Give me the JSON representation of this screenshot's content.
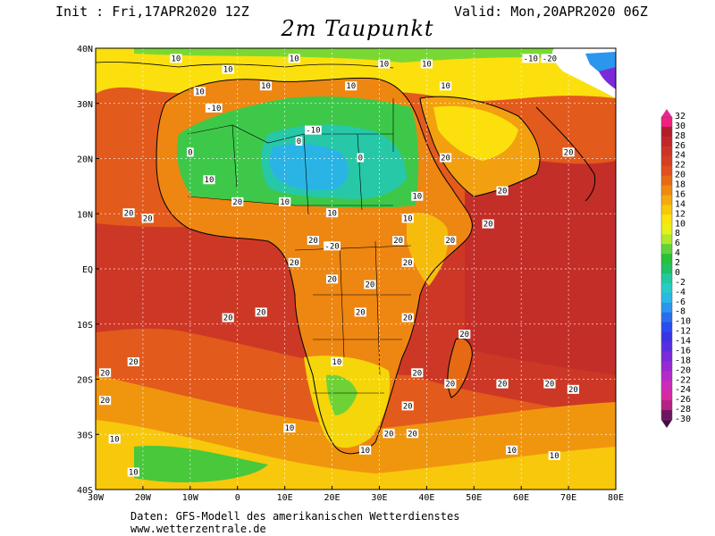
{
  "header": {
    "init": "Init : Fri,17APR2020 12Z",
    "valid": "Valid: Mon,20APR2020 06Z",
    "title": "2m Taupunkt"
  },
  "footer": {
    "line1": "Daten: GFS-Modell des amerikanischen Wetterdienstes",
    "line2": "www.wetterzentrale.de"
  },
  "map": {
    "region": "Africa",
    "lat_labels": [
      "40N",
      "30N",
      "20N",
      "10N",
      "EQ",
      "10S",
      "20S",
      "30S",
      "40S"
    ],
    "lon_labels": [
      "30W",
      "20W",
      "10W",
      "0",
      "10E",
      "20E",
      "30E",
      "40E",
      "50E",
      "60E",
      "70E",
      "80E"
    ],
    "lat_values": [
      40,
      30,
      20,
      10,
      0,
      -10,
      -20,
      -30,
      -40
    ],
    "lon_values": [
      -30,
      -20,
      -10,
      0,
      10,
      20,
      30,
      40,
      50,
      60,
      70,
      80
    ],
    "contour_labels": [
      {
        "text": "10",
        "lon": -13,
        "lat": 38
      },
      {
        "text": "10",
        "lon": -2,
        "lat": 36
      },
      {
        "text": "10",
        "lon": 12,
        "lat": 38
      },
      {
        "text": "10",
        "lon": 31,
        "lat": 37
      },
      {
        "text": "10",
        "lon": 40,
        "lat": 37
      },
      {
        "text": "-10",
        "lon": 62,
        "lat": 38
      },
      {
        "text": "-20",
        "lon": 66,
        "lat": 38
      },
      {
        "text": "10",
        "lon": -8,
        "lat": 32
      },
      {
        "text": "-10",
        "lon": -5,
        "lat": 29
      },
      {
        "text": "10",
        "lon": 6,
        "lat": 33
      },
      {
        "text": "10",
        "lon": 24,
        "lat": 33
      },
      {
        "text": "10",
        "lon": 44,
        "lat": 33
      },
      {
        "text": "-10",
        "lon": 16,
        "lat": 25
      },
      {
        "text": "0",
        "lon": 13,
        "lat": 23
      },
      {
        "text": "0",
        "lon": 26,
        "lat": 20
      },
      {
        "text": "0",
        "lon": -10,
        "lat": 21
      },
      {
        "text": "10",
        "lon": -6,
        "lat": 16
      },
      {
        "text": "10",
        "lon": 10,
        "lat": 12
      },
      {
        "text": "10",
        "lon": 20,
        "lat": 10
      },
      {
        "text": "10",
        "lon": 38,
        "lat": 13
      },
      {
        "text": "10",
        "lon": 36,
        "lat": 9
      },
      {
        "text": "20",
        "lon": 44,
        "lat": 20
      },
      {
        "text": "20",
        "lon": 56,
        "lat": 14
      },
      {
        "text": "20",
        "lon": 70,
        "lat": 21
      },
      {
        "text": "20",
        "lon": -23,
        "lat": 10
      },
      {
        "text": "20",
        "lon": -19,
        "lat": 9
      },
      {
        "text": "20",
        "lon": 0,
        "lat": 12
      },
      {
        "text": "20",
        "lon": 16,
        "lat": 5
      },
      {
        "text": "-20",
        "lon": 20,
        "lat": 4
      },
      {
        "text": "20",
        "lon": 34,
        "lat": 5
      },
      {
        "text": "20",
        "lon": 45,
        "lat": 5
      },
      {
        "text": "20",
        "lon": 53,
        "lat": 8
      },
      {
        "text": "20",
        "lon": 12,
        "lat": 1
      },
      {
        "text": "20",
        "lon": 36,
        "lat": 1
      },
      {
        "text": "20",
        "lon": 20,
        "lat": -2
      },
      {
        "text": "20",
        "lon": 28,
        "lat": -3
      },
      {
        "text": "20",
        "lon": -2,
        "lat": -9
      },
      {
        "text": "20",
        "lon": 5,
        "lat": -8
      },
      {
        "text": "20",
        "lon": 26,
        "lat": -8
      },
      {
        "text": "20",
        "lon": 36,
        "lat": -9
      },
      {
        "text": "20",
        "lon": 48,
        "lat": -12
      },
      {
        "text": "20",
        "lon": -28,
        "lat": -19
      },
      {
        "text": "20",
        "lon": -22,
        "lat": -17
      },
      {
        "text": "20",
        "lon": -28,
        "lat": -24
      },
      {
        "text": "20",
        "lon": 38,
        "lat": -19
      },
      {
        "text": "20",
        "lon": 45,
        "lat": -21
      },
      {
        "text": "20",
        "lon": 56,
        "lat": -21
      },
      {
        "text": "20",
        "lon": 66,
        "lat": -21
      },
      {
        "text": "20",
        "lon": 71,
        "lat": -22
      },
      {
        "text": "10",
        "lon": 21,
        "lat": -17
      },
      {
        "text": "10",
        "lon": -26,
        "lat": -31
      },
      {
        "text": "10",
        "lon": -22,
        "lat": -37
      },
      {
        "text": "10",
        "lon": 11,
        "lat": -29
      },
      {
        "text": "20",
        "lon": 36,
        "lat": -25
      },
      {
        "text": "20",
        "lon": 32,
        "lat": -30
      },
      {
        "text": "20",
        "lon": 37,
        "lat": -30
      },
      {
        "text": "10",
        "lon": 27,
        "lat": -33
      },
      {
        "text": "10",
        "lon": 58,
        "lat": -33
      },
      {
        "text": "10",
        "lon": 67,
        "lat": -34
      }
    ]
  },
  "colorbar": {
    "labels": [
      "32",
      "30",
      "28",
      "26",
      "24",
      "22",
      "20",
      "18",
      "16",
      "14",
      "12",
      "10",
      "8",
      "6",
      "4",
      "2",
      "0",
      "-2",
      "-4",
      "-6",
      "-8",
      "-10",
      "-12",
      "-14",
      "-16",
      "-18",
      "-20",
      "-22",
      "-24",
      "-26",
      "-28",
      "-30"
    ],
    "colors": [
      "#ee2280",
      "#b01e2a",
      "#c2262c",
      "#cc3428",
      "#d63f24",
      "#e04f1e",
      "#e66a14",
      "#ee8a10",
      "#f4aa0c",
      "#f8c80a",
      "#fbe40a",
      "#e8f018",
      "#b2e82a",
      "#62d23a",
      "#28c036",
      "#20c064",
      "#22c89e",
      "#26ccc8",
      "#2ab8e6",
      "#2a96ee",
      "#2a6eee",
      "#2a4cee",
      "#3a34e6",
      "#5a2ee0",
      "#7a2ad8",
      "#962ad0",
      "#b42ac8",
      "#cc2ab8",
      "#d62aa0",
      "#b42284",
      "#6e1660"
    ]
  }
}
